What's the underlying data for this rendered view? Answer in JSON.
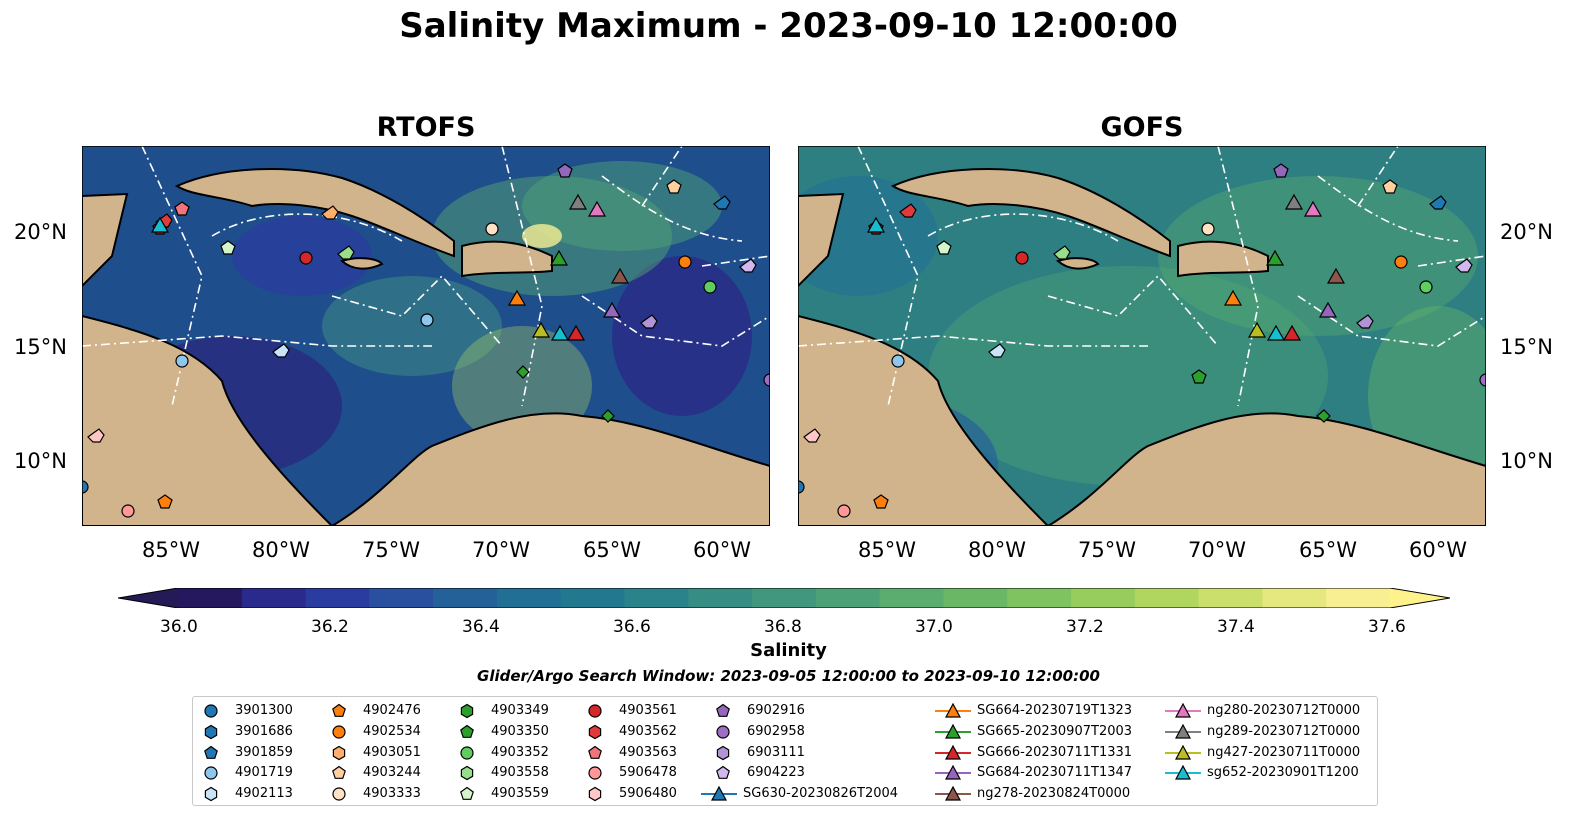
{
  "title": "Salinity Maximum - 2023-09-10 12:00:00",
  "panels": [
    {
      "title": "RTOFS",
      "background": "#1f4e8c"
    },
    {
      "title": "GOFS",
      "background": "#2e7f82"
    }
  ],
  "axes": {
    "lon_ticks": [
      "85°W",
      "80°W",
      "75°W",
      "70°W",
      "65°W",
      "60°W"
    ],
    "lat_ticks": [
      "20°N",
      "15°N",
      "10°N"
    ]
  },
  "colorbar": {
    "label": "Salinity",
    "ticks": [
      "36.0",
      "36.2",
      "36.4",
      "36.6",
      "36.8",
      "37.0",
      "37.2",
      "37.4",
      "37.6"
    ],
    "colors": [
      "#26185f",
      "#2a2a8c",
      "#2b3ca0",
      "#29509e",
      "#256199",
      "#226f95",
      "#22798f",
      "#2a838a",
      "#358d84",
      "#40977d",
      "#4ca276",
      "#5aad6e",
      "#6ab866",
      "#7ec35f",
      "#97cd5c",
      "#b1d660",
      "#cbdf6d",
      "#e4e87f",
      "#f8ef92"
    ],
    "under_color": "#241a55",
    "over_color": "#fdf28c"
  },
  "search_window": "Glider/Argo Search Window: 2023-09-05 12:00:00 to 2023-09-10 12:00:00",
  "legend": {
    "items": [
      {
        "label": "3901300",
        "marker": "circle",
        "color": "#1f77b4"
      },
      {
        "label": "3901686",
        "marker": "hexagon",
        "color": "#1f77b4"
      },
      {
        "label": "3901859",
        "marker": "pentagon",
        "color": "#1f77b4"
      },
      {
        "label": "4901719",
        "marker": "circle",
        "color": "#8ec6ec"
      },
      {
        "label": "4902113",
        "marker": "hexagon",
        "color": "#c8e4f8"
      },
      {
        "label": "4902476",
        "marker": "pentagon",
        "color": "#ff7f0e"
      },
      {
        "label": "4902534",
        "marker": "circle",
        "color": "#ff7f0e"
      },
      {
        "label": "4903051",
        "marker": "hexagon",
        "color": "#ffae6b"
      },
      {
        "label": "4903244",
        "marker": "pentagon",
        "color": "#ffcf9f"
      },
      {
        "label": "4903333",
        "marker": "circle",
        "color": "#ffe1c6"
      },
      {
        "label": "4903349",
        "marker": "hexagon",
        "color": "#2ca02c"
      },
      {
        "label": "4903350",
        "marker": "pentagon",
        "color": "#2ca02c"
      },
      {
        "label": "4903352",
        "marker": "circle",
        "color": "#5fce5f"
      },
      {
        "label": "4903558",
        "marker": "hexagon",
        "color": "#98df8a"
      },
      {
        "label": "4903559",
        "marker": "pentagon",
        "color": "#d4f5cc"
      },
      {
        "label": "4903561",
        "marker": "circle",
        "color": "#d62728"
      },
      {
        "label": "4903562",
        "marker": "hexagon",
        "color": "#e23a3b"
      },
      {
        "label": "4903563",
        "marker": "pentagon",
        "color": "#f0747a"
      },
      {
        "label": "5906478",
        "marker": "circle",
        "color": "#ff9896"
      },
      {
        "label": "5906480",
        "marker": "hexagon",
        "color": "#ffc8c6"
      },
      {
        "label": "6902916",
        "marker": "pentagon",
        "color": "#9467bd"
      },
      {
        "label": "6902958",
        "marker": "circle",
        "color": "#9c6fc4"
      },
      {
        "label": "6903111",
        "marker": "hexagon",
        "color": "#b294d6"
      },
      {
        "label": "6904223",
        "marker": "pentagon",
        "color": "#d2b8ee"
      },
      {
        "label": "SG630-20230826T2004",
        "marker": "line-triangle",
        "color": "#1f77b4"
      },
      {
        "label": "SG664-20230719T1323",
        "marker": "line-triangle",
        "color": "#ff7f0e"
      },
      {
        "label": "SG665-20230907T2003",
        "marker": "line-triangle",
        "color": "#2ca02c"
      },
      {
        "label": "SG666-20230711T1331",
        "marker": "line-triangle",
        "color": "#d62728"
      },
      {
        "label": "SG684-20230711T1347",
        "marker": "line-triangle",
        "color": "#9467bd"
      },
      {
        "label": "ng278-20230824T0000",
        "marker": "line-triangle",
        "color": "#8c564b"
      },
      {
        "label": "ng280-20230712T0000",
        "marker": "line-triangle",
        "color": "#e377c2"
      },
      {
        "label": "ng289-20230712T0000",
        "marker": "line-triangle",
        "color": "#7f7f7f"
      },
      {
        "label": "ng427-20230711T0000",
        "marker": "line-triangle",
        "color": "#bcbd22"
      },
      {
        "label": "sg652-20230901T1200",
        "marker": "line-triangle",
        "color": "#17becf"
      }
    ]
  }
}
